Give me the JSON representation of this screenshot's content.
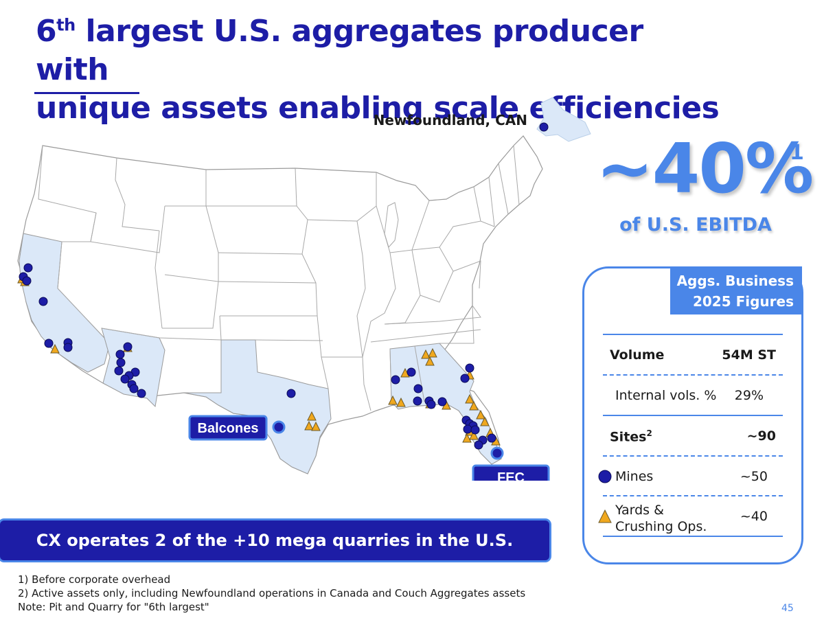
{
  "header": {
    "title_ordinal": "6",
    "title_ordinal_suffix": "th",
    "title_line1_rest": " largest U.S. aggregates producer with",
    "title_line2": "unique assets enabling scale efficiencies"
  },
  "map": {
    "newfoundland_label": "Newfoundland, CAN",
    "balcones_label": "Balcones",
    "fec_label": "FEC",
    "highlight_color": "#dbe8f8",
    "mine_color": "#1d1da6",
    "yard_color": "#f0a81e"
  },
  "kpi": {
    "value": "~40%",
    "footnote_mark": "1",
    "label": "of U.S. EBITDA"
  },
  "panel": {
    "banner_line1": "Aggs. Business",
    "banner_line2": "2025 Figures",
    "rows": [
      {
        "label": "Volume",
        "value": "54M ST"
      },
      {
        "label": "Internal vols. %",
        "value": "29%"
      },
      {
        "label": "Sites",
        "label_sup": "2",
        "value": "~90"
      },
      {
        "label": "Mines",
        "value": "~50"
      },
      {
        "label_line1": "Yards &",
        "label_line2": "Crushing Ops.",
        "value": "~40"
      }
    ]
  },
  "callout": "CX operates 2 of the +10 mega quarries in the U.S.",
  "footnotes": [
    "1) Before corporate overhead",
    "2) Active assets only, including Newfoundland operations in Canada and Couch Aggregates assets",
    "Note: Pit and Quarry for \"6th largest\""
  ],
  "page_number": "45"
}
